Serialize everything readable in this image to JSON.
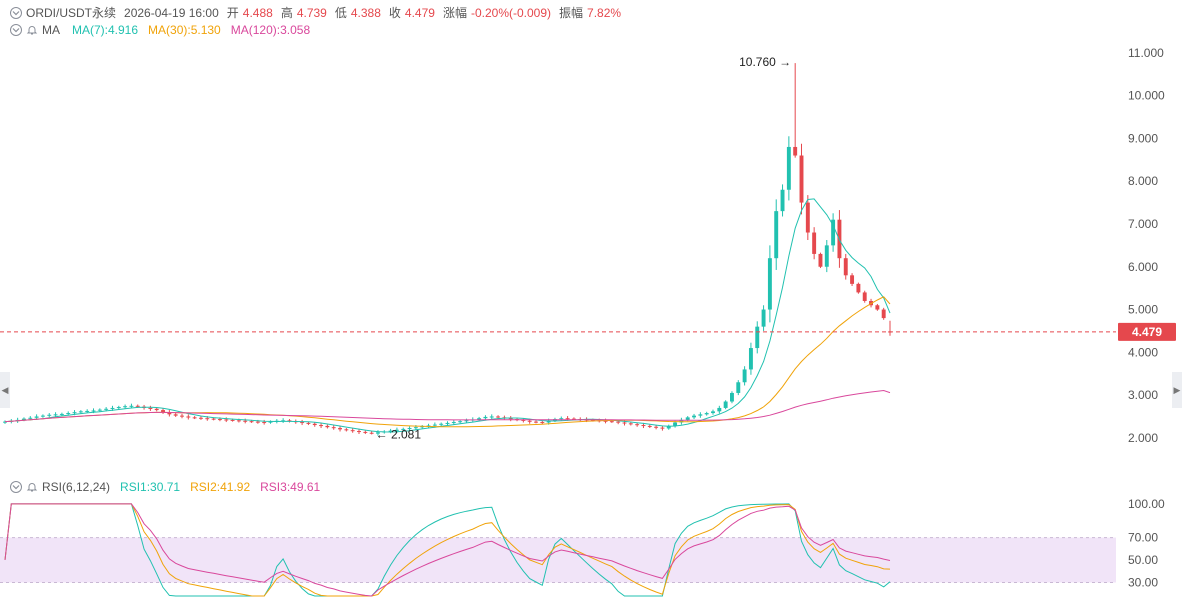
{
  "header": {
    "symbol": "ORDI/USDT永续",
    "datetime": "2026-04-19 16:00",
    "open_label": "开",
    "open": "4.488",
    "high_label": "高",
    "high": "4.739",
    "low_label": "低",
    "low": "4.388",
    "close_label": "收",
    "close": "4.479",
    "change_label": "涨幅",
    "change": "-0.20%(-0.009)",
    "amplitude_label": "振幅",
    "amplitude": "7.82%"
  },
  "ma_legend": {
    "label": "MA",
    "ma7": "MA(7):4.916",
    "ma30": "MA(30):5.130",
    "ma120": "MA(120):3.058"
  },
  "rsi_legend": {
    "label": "RSI(6,12,24)",
    "rsi1": "RSI1:30.71",
    "rsi2": "RSI2:41.92",
    "rsi3": "RSI3:49.61"
  },
  "colors": {
    "up": "#21c1b0",
    "down": "#e5484d",
    "ma7": "#21c1b0",
    "ma30": "#f0a30a",
    "ma120": "#d9489c",
    "rsi_band": "#f1e4f8"
  },
  "chart_data": [
    {
      "type": "candlestick",
      "ylim": [
        1.6,
        11.3
      ],
      "y_ticks": [
        "11.000",
        "10.000",
        "9.000",
        "8.000",
        "7.000",
        "6.000",
        "5.000",
        "4.000",
        "3.000",
        "2.000"
      ],
      "y_tick_values": [
        11,
        10,
        9,
        8,
        7,
        6,
        5,
        4,
        3,
        2
      ],
      "current_price": 4.479,
      "current_price_label": "4.479",
      "max_annotation": {
        "value": 10.76,
        "label": "10.760 →"
      },
      "min_annotation": {
        "value": 2.081,
        "label": "← 2.081"
      },
      "close_series": [
        2.38,
        2.4,
        2.42,
        2.45,
        2.47,
        2.5,
        2.52,
        2.54,
        2.55,
        2.56,
        2.58,
        2.6,
        2.62,
        2.63,
        2.64,
        2.66,
        2.68,
        2.7,
        2.72,
        2.74,
        2.75,
        2.73,
        2.7,
        2.68,
        2.65,
        2.6,
        2.55,
        2.52,
        2.5,
        2.48,
        2.47,
        2.46,
        2.45,
        2.44,
        2.43,
        2.42,
        2.41,
        2.4,
        2.39,
        2.38,
        2.37,
        2.36,
        2.38,
        2.4,
        2.41,
        2.39,
        2.37,
        2.35,
        2.33,
        2.3,
        2.28,
        2.25,
        2.23,
        2.2,
        2.18,
        2.16,
        2.14,
        2.12,
        2.1,
        2.13,
        2.15,
        2.17,
        2.19,
        2.21,
        2.23,
        2.25,
        2.27,
        2.29,
        2.31,
        2.33,
        2.35,
        2.37,
        2.39,
        2.41,
        2.43,
        2.46,
        2.49,
        2.5,
        2.48,
        2.46,
        2.44,
        2.42,
        2.4,
        2.38,
        2.37,
        2.36,
        2.4,
        2.44,
        2.46,
        2.45,
        2.44,
        2.43,
        2.42,
        2.41,
        2.4,
        2.39,
        2.38,
        2.36,
        2.34,
        2.32,
        2.3,
        2.28,
        2.26,
        2.24,
        2.22,
        2.28,
        2.36,
        2.42,
        2.48,
        2.52,
        2.55,
        2.58,
        2.62,
        2.7,
        2.85,
        3.05,
        3.3,
        3.6,
        4.1,
        4.6,
        5.0,
        6.2,
        7.3,
        7.8,
        8.8,
        8.6,
        7.5,
        6.8,
        6.3,
        6.0,
        6.5,
        7.1,
        6.2,
        5.8,
        5.6,
        5.4,
        5.2,
        5.1,
        5.0,
        4.8,
        4.479
      ],
      "ma7_last": 4.916,
      "ma30_last": 5.13,
      "ma120_last": 3.058
    },
    {
      "type": "line",
      "title": "RSI(6,12,24)",
      "ylim": [
        18,
        107
      ],
      "y_ticks": [
        "100.00",
        "70.00",
        "50.00",
        "30.00"
      ],
      "y_tick_values": [
        100,
        70,
        50,
        30
      ],
      "band": [
        30,
        70
      ],
      "series": [
        {
          "name": "RSI1",
          "last": 30.71
        },
        {
          "name": "RSI2",
          "last": 41.92
        },
        {
          "name": "RSI3",
          "last": 49.61
        }
      ]
    }
  ]
}
